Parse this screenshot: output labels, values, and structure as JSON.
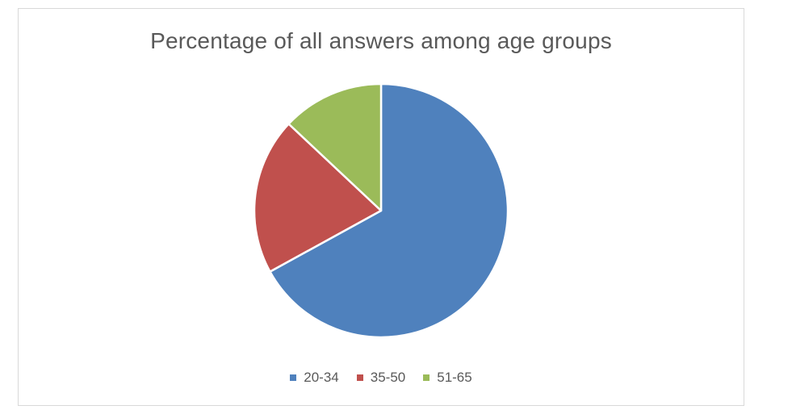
{
  "chart_data": {
    "type": "pie",
    "title": "Percentage of all answers among age groups",
    "categories": [
      "20-34",
      "35-50",
      "51-65"
    ],
    "values": [
      67,
      20,
      13
    ],
    "colors": [
      "#4f81bd",
      "#c0504d",
      "#9bbb59"
    ],
    "legend_position": "bottom",
    "start_angle": "12 o'clock, clockwise"
  }
}
